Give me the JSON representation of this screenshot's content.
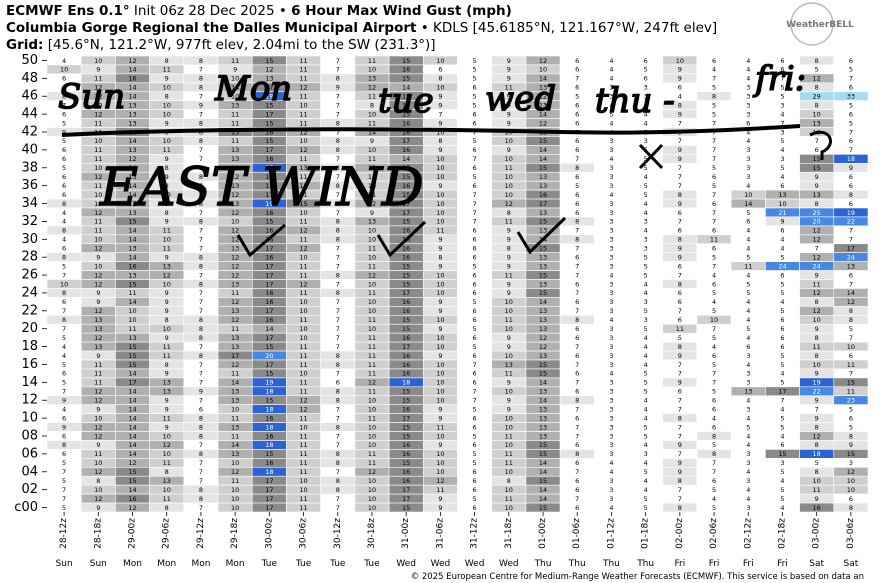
{
  "header": {
    "model": "ECMWF Ens 0.1°",
    "init": "Init 06z 28 Dec 2025 •",
    "title": "6 Hour Max Wind Gust (mph)",
    "station": "Columbia Gorge Regional the Dalles Municipal Airport",
    "station_info": "• KDLS [45.6185°N, 121.167°W, 247ft elev]",
    "grid_label": "Grid:",
    "grid_info": "[45.6°N, 121.2°W, 977ft elev, 2.04mi to the SW (231.3°)]",
    "logo": "WeatherBELL"
  },
  "footer": "© 2025 European Centre for Medium-Range Weather Forecasts (ECMWF). This service is based on data an",
  "annotations": [
    "Sun",
    "Mon",
    "tue",
    "wed",
    "thu -",
    "fri:",
    "EAST WIND"
  ],
  "chart_data": {
    "type": "heatmap",
    "x": [
      "28-12z",
      "28-18z",
      "29-00z",
      "29-06z",
      "29-12z",
      "29-18z",
      "30-00z",
      "30-06z",
      "30-12z",
      "30-18z",
      "31-00z",
      "31-06z",
      "31-12z",
      "31-18z",
      "01-00z",
      "01-06z",
      "01-12z",
      "01-18z",
      "02-00z",
      "02-06z",
      "02-12z",
      "02-18z",
      "03-00z",
      "03-06z"
    ],
    "days": [
      "Sun",
      "Sun",
      "Mon",
      "Mon",
      "Mon",
      "Mon",
      "Tue",
      "Tue",
      "Tue",
      "Tue",
      "Wed",
      "Wed",
      "Wed",
      "Wed",
      "Thu",
      "Thu",
      "Thu",
      "Thu",
      "Fri",
      "Fri",
      "Fri",
      "Fri",
      "Sat",
      "Sat"
    ],
    "y": [
      "50",
      null,
      "48",
      null,
      "46",
      null,
      "44",
      null,
      "42",
      null,
      "40",
      null,
      "38",
      null,
      "36",
      null,
      "34",
      null,
      "32",
      null,
      "30",
      null,
      "28",
      null,
      "26",
      null,
      "24",
      null,
      "22",
      null,
      "20",
      null,
      "18",
      null,
      "16",
      null,
      "14",
      null,
      "12",
      null,
      "10",
      null,
      "08",
      null,
      "06",
      null,
      "04",
      null,
      "02",
      null,
      "c00"
    ],
    "color_scale": [
      {
        "from": 0,
        "color": "#ffffff",
        "text": "#000000"
      },
      {
        "from": 8,
        "color": "#e4e4e4",
        "text": "#000000"
      },
      {
        "from": 10,
        "color": "#cfcfcf",
        "text": "#000000"
      },
      {
        "from": 12,
        "color": "#b0b0b0",
        "text": "#000000"
      },
      {
        "from": 15,
        "color": "#8a8a8a",
        "text": "#000000"
      },
      {
        "from": 18,
        "color": "#2b63d2",
        "text": "#ffffff"
      },
      {
        "from": 20,
        "color": "#4688e4",
        "text": "#ffffff"
      },
      {
        "from": 27,
        "color": "#a5dcf5",
        "text": "#000000"
      }
    ],
    "values": [
      [
        4,
        10,
        12,
        8,
        8,
        11,
        15,
        11,
        7,
        11,
        15,
        10,
        5,
        9,
        12,
        6,
        4,
        6,
        10,
        6,
        4,
        6,
        8,
        6
      ],
      [
        10,
        9,
        14,
        11,
        7,
        9,
        12,
        11,
        7,
        10,
        16,
        6,
        5,
        9,
        10,
        6,
        4,
        5,
        9,
        4,
        4,
        6,
        5,
        5
      ],
      [
        6,
        11,
        16,
        9,
        8,
        10,
        13,
        11,
        8,
        13,
        15,
        8,
        5,
        9,
        14,
        7,
        4,
        6,
        9,
        7,
        4,
        7,
        12,
        7
      ],
      [
        6,
        12,
        14,
        10,
        8,
        14,
        17,
        12,
        9,
        12,
        14,
        10,
        6,
        11,
        13,
        6,
        3,
        3,
        6,
        5,
        3,
        5,
        8,
        6
      ],
      [
        8,
        12,
        14,
        8,
        7,
        10,
        18,
        11,
        7,
        11,
        15,
        9,
        5,
        9,
        12,
        5,
        3,
        3,
        4,
        8,
        3,
        5,
        29,
        33
      ],
      [
        7,
        10,
        13,
        10,
        9,
        13,
        15,
        10,
        7,
        8,
        15,
        9,
        5,
        9,
        13,
        6,
        4,
        4,
        8,
        5,
        3,
        3,
        8,
        5
      ],
      [
        6,
        12,
        13,
        10,
        7,
        11,
        17,
        11,
        7,
        10,
        15,
        7,
        6,
        9,
        14,
        6,
        5,
        4,
        9,
        5,
        3,
        4,
        10,
        6
      ],
      [
        5,
        11,
        13,
        9,
        8,
        11,
        15,
        11,
        8,
        11,
        16,
        9,
        6,
        9,
        12,
        6,
        4,
        4,
        7,
        7,
        6,
        7,
        13,
        5
      ],
      [
        9,
        11,
        16,
        9,
        8,
        15,
        16,
        12,
        7,
        14,
        16,
        10,
        7,
        10,
        13,
        7,
        4,
        5,
        9,
        7,
        4,
        3,
        10,
        7
      ],
      [
        5,
        10,
        14,
        10,
        8,
        11,
        15,
        10,
        8,
        9,
        17,
        8,
        5,
        10,
        15,
        6,
        3,
        3,
        7,
        7,
        4,
        5,
        7,
        6
      ],
      [
        6,
        11,
        13,
        11,
        7,
        13,
        17,
        12,
        8,
        10,
        16,
        9,
        6,
        9,
        14,
        6,
        3,
        5,
        9,
        7,
        3,
        4,
        6,
        7
      ],
      [
        6,
        11,
        12,
        9,
        7,
        13,
        16,
        11,
        7,
        11,
        14,
        10,
        7,
        10,
        14,
        7,
        4,
        5,
        9,
        7,
        3,
        3,
        15,
        18
      ],
      [
        5,
        10,
        14,
        8,
        7,
        14,
        18,
        13,
        8,
        12,
        17,
        10,
        6,
        11,
        15,
        8,
        3,
        5,
        7,
        5,
        3,
        5,
        15,
        9
      ],
      [
        6,
        12,
        13,
        9,
        8,
        12,
        16,
        11,
        7,
        10,
        15,
        10,
        5,
        10,
        13,
        6,
        3,
        4,
        7,
        6,
        3,
        4,
        9,
        6
      ],
      [
        6,
        11,
        14,
        8,
        7,
        13,
        15,
        12,
        8,
        10,
        16,
        9,
        6,
        10,
        13,
        5,
        3,
        5,
        7,
        5,
        4,
        6,
        9,
        6
      ],
      [
        6,
        10,
        14,
        10,
        8,
        12,
        17,
        11,
        7,
        11,
        15,
        10,
        7,
        10,
        16,
        6,
        4,
        5,
        8,
        7,
        10,
        13,
        13,
        8
      ],
      [
        8,
        10,
        12,
        9,
        8,
        13,
        19,
        15,
        8,
        12,
        17,
        10,
        7,
        12,
        17,
        6,
        3,
        4,
        9,
        6,
        14,
        10,
        8,
        6
      ],
      [
        4,
        12,
        13,
        8,
        7,
        12,
        16,
        10,
        7,
        9,
        17,
        10,
        7,
        8,
        13,
        6,
        3,
        4,
        6,
        7,
        5,
        21,
        25,
        19
      ],
      [
        4,
        11,
        15,
        9,
        8,
        10,
        15,
        11,
        8,
        13,
        15,
        10,
        7,
        11,
        15,
        8,
        3,
        3,
        7,
        7,
        6,
        9,
        20,
        22
      ],
      [
        8,
        11,
        14,
        11,
        7,
        12,
        16,
        12,
        8,
        10,
        16,
        11,
        6,
        9,
        13,
        7,
        3,
        4,
        6,
        6,
        4,
        6,
        12,
        7
      ],
      [
        4,
        10,
        14,
        10,
        7,
        12,
        16,
        11,
        8,
        10,
        16,
        9,
        6,
        9,
        14,
        8,
        3,
        3,
        8,
        11,
        4,
        4,
        12,
        7
      ],
      [
        6,
        12,
        13,
        11,
        7,
        13,
        17,
        12,
        7,
        11,
        16,
        9,
        6,
        8,
        15,
        7,
        3,
        3,
        9,
        6,
        4,
        4,
        7,
        17
      ],
      [
        8,
        9,
        14,
        9,
        8,
        12,
        16,
        10,
        7,
        10,
        16,
        8,
        6,
        9,
        13,
        6,
        3,
        5,
        9,
        5,
        5,
        5,
        12,
        24
      ],
      [
        5,
        10,
        16,
        13,
        8,
        12,
        17,
        11,
        7,
        11,
        15,
        9,
        5,
        9,
        13,
        7,
        3,
        5,
        6,
        7,
        11,
        24,
        24,
        13
      ],
      [
        7,
        12,
        13,
        12,
        7,
        12,
        17,
        11,
        8,
        12,
        15,
        10,
        6,
        11,
        15,
        7,
        4,
        5,
        7,
        4,
        4,
        6,
        9,
        6
      ],
      [
        10,
        12,
        15,
        10,
        8,
        13,
        17,
        12,
        7,
        10,
        15,
        10,
        6,
        9,
        13,
        6,
        3,
        4,
        8,
        6,
        5,
        5,
        11,
        7
      ],
      [
        8,
        9,
        11,
        9,
        7,
        11,
        16,
        11,
        8,
        11,
        17,
        10,
        6,
        9,
        15,
        7,
        3,
        4,
        6,
        5,
        5,
        5,
        12,
        14
      ],
      [
        6,
        9,
        14,
        9,
        7,
        12,
        16,
        10,
        7,
        10,
        16,
        9,
        5,
        10,
        14,
        6,
        3,
        3,
        6,
        4,
        4,
        4,
        8,
        12
      ],
      [
        7,
        12,
        10,
        9,
        7,
        13,
        17,
        10,
        7,
        10,
        16,
        9,
        6,
        10,
        13,
        7,
        3,
        5,
        7,
        5,
        4,
        5,
        12,
        8
      ],
      [
        8,
        13,
        10,
        8,
        8,
        12,
        16,
        11,
        7,
        11,
        15,
        10,
        6,
        11,
        13,
        8,
        4,
        3,
        6,
        10,
        4,
        6,
        10,
        8
      ],
      [
        7,
        13,
        11,
        10,
        8,
        11,
        14,
        10,
        7,
        10,
        15,
        9,
        5,
        10,
        13,
        6,
        3,
        5,
        11,
        7,
        5,
        6,
        9,
        5
      ],
      [
        5,
        12,
        13,
        9,
        8,
        13,
        17,
        10,
        7,
        11,
        16,
        10,
        6,
        9,
        12,
        6,
        3,
        4,
        5,
        5,
        4,
        6,
        8,
        7
      ],
      [
        4,
        13,
        15,
        11,
        7,
        13,
        15,
        11,
        7,
        11,
        17,
        10,
        5,
        9,
        12,
        7,
        3,
        4,
        8,
        4,
        6,
        6,
        11,
        10
      ],
      [
        4,
        9,
        15,
        11,
        8,
        17,
        20,
        11,
        8,
        11,
        16,
        9,
        6,
        10,
        13,
        6,
        3,
        4,
        9,
        6,
        3,
        5,
        8,
        6
      ],
      [
        5,
        11,
        15,
        8,
        7,
        12,
        17,
        11,
        8,
        11,
        16,
        10,
        7,
        13,
        15,
        7,
        3,
        4,
        7,
        5,
        4,
        5,
        10,
        11
      ],
      [
        6,
        11,
        14,
        9,
        7,
        11,
        15,
        10,
        7,
        11,
        16,
        10,
        6,
        11,
        15,
        6,
        4,
        5,
        7,
        7,
        3,
        4,
        9,
        7
      ],
      [
        5,
        11,
        17,
        13,
        7,
        14,
        19,
        11,
        6,
        12,
        18,
        10,
        6,
        9,
        14,
        7,
        3,
        5,
        9,
        7,
        3,
        5,
        19,
        15
      ],
      [
        7,
        12,
        14,
        13,
        9,
        13,
        18,
        11,
        8,
        11,
        15,
        10,
        7,
        10,
        13,
        6,
        3,
        5,
        6,
        5,
        13,
        17,
        22,
        11
      ],
      [
        9,
        12,
        14,
        9,
        7,
        13,
        15,
        12,
        8,
        10,
        15,
        10,
        7,
        9,
        14,
        8,
        3,
        4,
        7,
        6,
        4,
        7,
        9,
        23
      ],
      [
        4,
        9,
        14,
        9,
        6,
        10,
        18,
        12,
        7,
        10,
        16,
        9,
        5,
        9,
        13,
        7,
        3,
        4,
        7,
        6,
        3,
        4,
        7,
        5
      ],
      [
        6,
        10,
        14,
        11,
        8,
        11,
        16,
        11,
        7,
        11,
        17,
        9,
        6,
        10,
        13,
        6,
        3,
        4,
        8,
        4,
        4,
        5,
        9,
        6
      ],
      [
        9,
        12,
        14,
        9,
        8,
        13,
        18,
        10,
        8,
        10,
        15,
        11,
        6,
        10,
        13,
        7,
        3,
        5,
        7,
        6,
        5,
        5,
        8,
        5
      ],
      [
        6,
        12,
        14,
        10,
        8,
        11,
        16,
        11,
        7,
        10,
        15,
        10,
        5,
        11,
        13,
        7,
        3,
        5,
        7,
        8,
        4,
        4,
        12,
        8
      ],
      [
        8,
        9,
        14,
        12,
        7,
        14,
        18,
        11,
        7,
        10,
        16,
        9,
        6,
        10,
        15,
        6,
        3,
        4,
        9,
        5,
        4,
        6,
        8,
        9
      ],
      [
        6,
        11,
        14,
        10,
        8,
        13,
        15,
        11,
        8,
        11,
        16,
        10,
        5,
        11,
        15,
        8,
        3,
        3,
        7,
        8,
        3,
        15,
        18,
        15
      ],
      [
        5,
        10,
        12,
        11,
        7,
        10,
        16,
        11,
        8,
        11,
        15,
        10,
        5,
        11,
        14,
        6,
        4,
        4,
        9,
        7,
        3,
        3,
        5,
        3
      ],
      [
        7,
        12,
        15,
        8,
        7,
        12,
        18,
        11,
        7,
        12,
        16,
        10,
        6,
        10,
        14,
        7,
        4,
        5,
        9,
        7,
        4,
        5,
        8,
        12
      ],
      [
        5,
        8,
        15,
        13,
        7,
        11,
        17,
        10,
        8,
        10,
        16,
        12,
        6,
        8,
        15,
        6,
        3,
        4,
        8,
        6,
        3,
        4,
        10,
        10
      ],
      [
        7,
        10,
        14,
        10,
        8,
        10,
        17,
        10,
        8,
        10,
        17,
        11,
        6,
        10,
        14,
        6,
        3,
        4,
        7,
        5,
        4,
        5,
        11,
        10
      ],
      [
        7,
        12,
        16,
        11,
        8,
        10,
        17,
        11,
        7,
        10,
        17,
        9,
        5,
        11,
        14,
        7,
        3,
        5,
        7,
        4,
        4,
        5,
        9,
        6
      ],
      [
        5,
        9,
        12,
        8,
        7,
        10,
        17,
        11,
        7,
        10,
        15,
        9,
        6,
        10,
        15,
        6,
        4,
        5,
        8,
        5,
        3,
        4,
        16,
        8
      ]
    ]
  }
}
